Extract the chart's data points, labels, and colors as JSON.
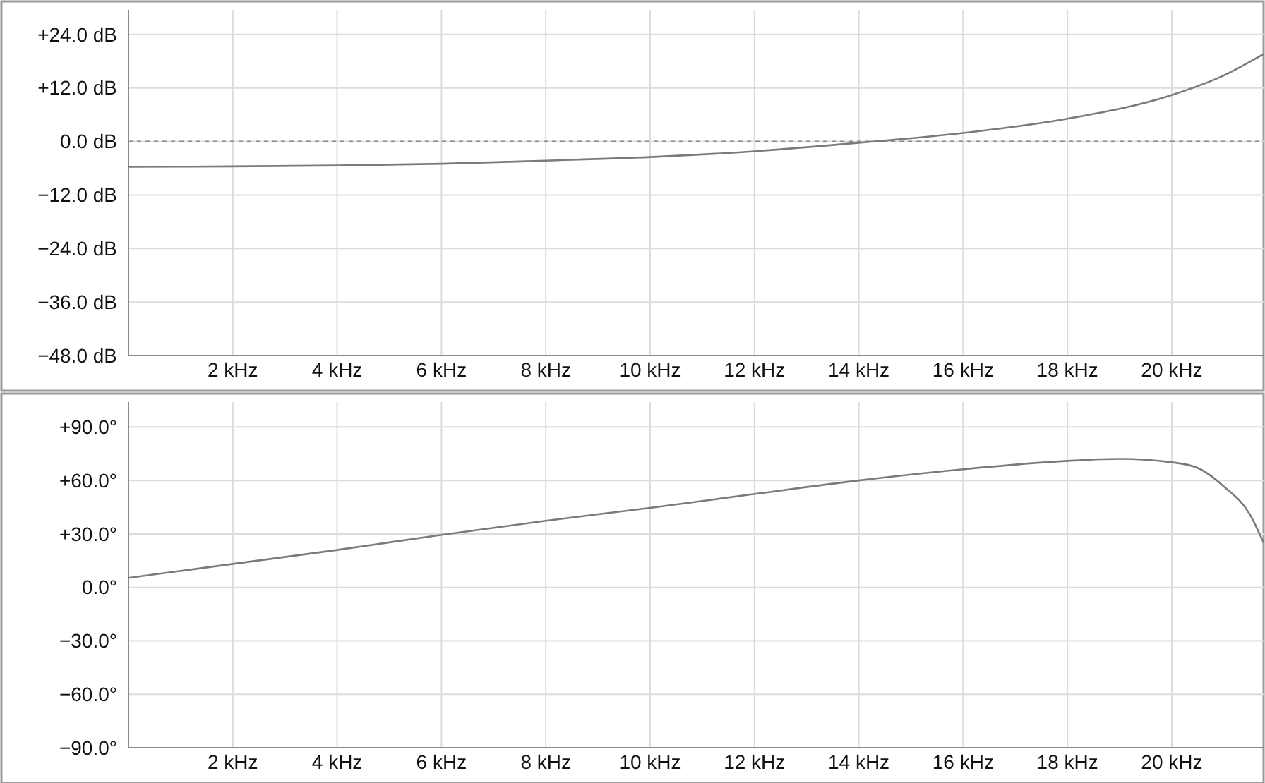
{
  "chart_data": [
    {
      "type": "line",
      "x": [
        0,
        2,
        4,
        6,
        8,
        10,
        12,
        14,
        16,
        18,
        20,
        21,
        21.76
      ],
      "xlim": [
        0,
        21.76
      ],
      "xticks": [
        {
          "value": 2,
          "label": "2 kHz"
        },
        {
          "value": 4,
          "label": "4 kHz"
        },
        {
          "value": 6,
          "label": "6 kHz"
        },
        {
          "value": 8,
          "label": "8 kHz"
        },
        {
          "value": 10,
          "label": "10 kHz"
        },
        {
          "value": 12,
          "label": "12 kHz"
        },
        {
          "value": 14,
          "label": "14 kHz"
        },
        {
          "value": 16,
          "label": "16 kHz"
        },
        {
          "value": 18,
          "label": "18 kHz"
        },
        {
          "value": 20,
          "label": "20 kHz"
        }
      ],
      "ylim": [
        -48,
        29.5
      ],
      "yticks": [
        {
          "value": 24,
          "label": "+24.0 dB"
        },
        {
          "value": 12,
          "label": "+12.0 dB"
        },
        {
          "value": 0,
          "label": "0.0 dB"
        },
        {
          "value": -12,
          "label": "−12.0 dB"
        },
        {
          "value": -24,
          "label": "−24.0 dB"
        },
        {
          "value": -36,
          "label": "−36.0 dB"
        },
        {
          "value": -48,
          "label": "−48.0 dB"
        }
      ],
      "series": [
        {
          "color": "#7a7a7a",
          "values": [
            -5.7,
            -5.6,
            -5.4,
            -5.0,
            -4.3,
            -3.5,
            -2.2,
            -0.3,
            1.9,
            5.1,
            10.4,
            14.8,
            19.6
          ]
        }
      ],
      "ref_lines": [
        {
          "axis": "y",
          "value": 0,
          "color": "#8a8a8a",
          "line_style": "dotted"
        }
      ],
      "grid": true
    },
    {
      "type": "line",
      "x": [
        0,
        2,
        4,
        6,
        8,
        10,
        12,
        14,
        16,
        18,
        19,
        20,
        20.5,
        21,
        21.5,
        21.76
      ],
      "xlim": [
        0,
        21.76
      ],
      "xticks": [
        {
          "value": 2,
          "label": "2 kHz"
        },
        {
          "value": 4,
          "label": "4 kHz"
        },
        {
          "value": 6,
          "label": "6 kHz"
        },
        {
          "value": 8,
          "label": "8 kHz"
        },
        {
          "value": 10,
          "label": "10 kHz"
        },
        {
          "value": 12,
          "label": "12 kHz"
        },
        {
          "value": 14,
          "label": "14 kHz"
        },
        {
          "value": 16,
          "label": "16 kHz"
        },
        {
          "value": 18,
          "label": "18 kHz"
        },
        {
          "value": 20,
          "label": "20 kHz"
        }
      ],
      "ylim": [
        -90,
        104
      ],
      "yticks": [
        {
          "value": 90,
          "label": "+90.0°"
        },
        {
          "value": 60,
          "label": "+60.0°"
        },
        {
          "value": 30,
          "label": "+30.0°"
        },
        {
          "value": 0,
          "label": "0.0°"
        },
        {
          "value": -30,
          "label": "−30.0°"
        },
        {
          "value": -60,
          "label": "−60.0°"
        },
        {
          "value": -90,
          "label": "−90.0°"
        }
      ],
      "series": [
        {
          "color": "#7a7a7a",
          "values": [
            5.3,
            13.2,
            21,
            29.5,
            37.4,
            44.6,
            52.4,
            60,
            66.3,
            71,
            72.1,
            70.2,
            67,
            56.6,
            40.8,
            25
          ]
        }
      ],
      "grid": true
    }
  ]
}
